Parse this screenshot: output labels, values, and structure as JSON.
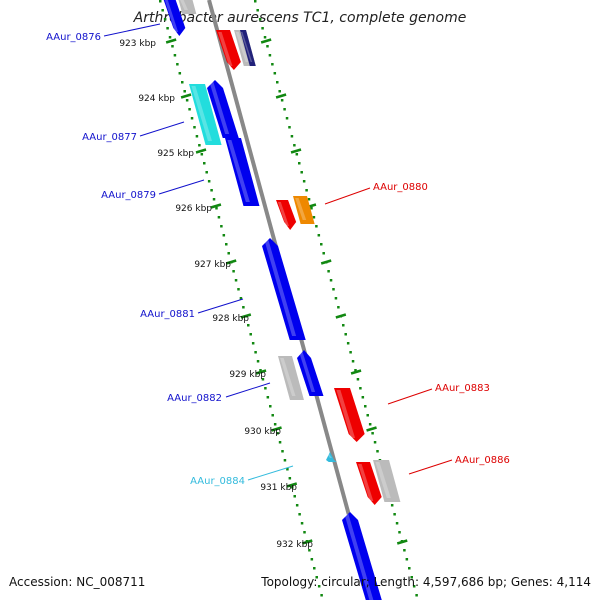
{
  "title": "Arthrobacter aurescens TC1, complete genome",
  "footer": {
    "accession_label": "Accession:",
    "accession": "NC_008711",
    "topology_label": "Topology:",
    "topology": "circular",
    "length_label": "Length:",
    "length": "4,597,686 bp",
    "genes_label": "Genes:",
    "genes": "4,114"
  },
  "colors": {
    "forward_gene": "#0000ee",
    "reverse_gene": "#ee0000",
    "highlight_gene": "#22dddd",
    "other_gene": "#ee8800",
    "pseudo_gene": "#bbbbbb",
    "backbone": "#888888",
    "tick": "#118811",
    "label_forward": "#1111cc",
    "label_reverse": "#dd0000",
    "label_highlight": "#33bbdd"
  },
  "ticks": [
    {
      "id": "923",
      "label": "923 kbp"
    },
    {
      "id": "924",
      "label": "924 kbp"
    },
    {
      "id": "925",
      "label": "925 kbp"
    },
    {
      "id": "926",
      "label": "926 kbp"
    },
    {
      "id": "927",
      "label": "927 kbp"
    },
    {
      "id": "928",
      "label": "928 kbp"
    },
    {
      "id": "929",
      "label": "929 kbp"
    },
    {
      "id": "930",
      "label": "930 kbp"
    },
    {
      "id": "931",
      "label": "931 kbp"
    },
    {
      "id": "932",
      "label": "932 kbp"
    }
  ],
  "gene_labels": [
    {
      "id": "aaur-0876",
      "text": "AAur_0876",
      "strand": "forward"
    },
    {
      "id": "aaur-0877",
      "text": "AAur_0877",
      "strand": "forward"
    },
    {
      "id": "aaur-0879",
      "text": "AAur_0879",
      "strand": "forward"
    },
    {
      "id": "aaur-0880",
      "text": "AAur_0880",
      "strand": "reverse"
    },
    {
      "id": "aaur-0881",
      "text": "AAur_0881",
      "strand": "forward"
    },
    {
      "id": "aaur-0882",
      "text": "AAur_0882",
      "strand": "forward"
    },
    {
      "id": "aaur-0883",
      "text": "AAur_0883",
      "strand": "reverse"
    },
    {
      "id": "aaur-0884",
      "text": "AAur_0884",
      "strand": "highlight"
    },
    {
      "id": "aaur-0886",
      "text": "AAur_0886",
      "strand": "reverse"
    }
  ]
}
